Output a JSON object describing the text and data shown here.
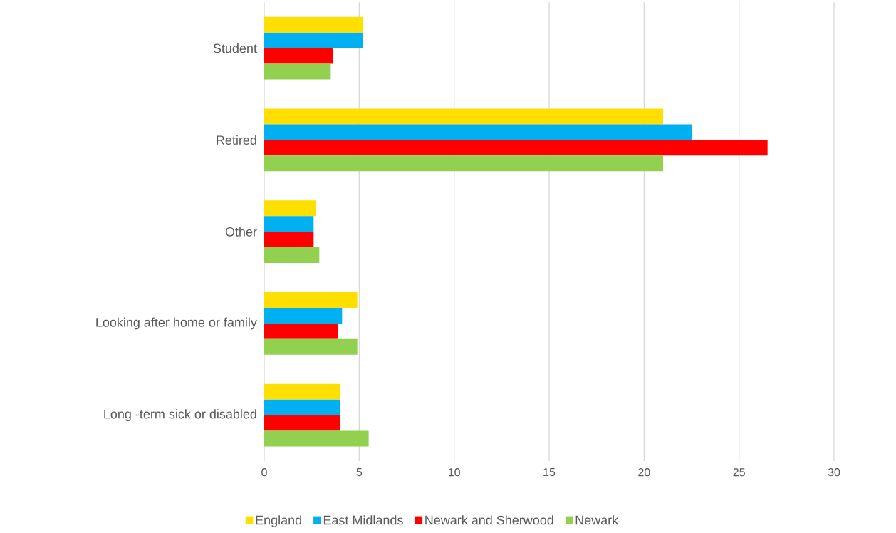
{
  "chart_data": {
    "type": "bar",
    "orientation": "horizontal",
    "categories": [
      "Student",
      "Retired",
      "Other",
      "Looking after home or family",
      "Long -term sick or disabled"
    ],
    "series": [
      {
        "name": "England",
        "color": "#ffdf00",
        "values": [
          5.2,
          21.0,
          2.7,
          4.9,
          4.0
        ]
      },
      {
        "name": "East Midlands",
        "color": "#00b0f0",
        "values": [
          5.2,
          22.5,
          2.6,
          4.1,
          4.0
        ]
      },
      {
        "name": "Newark and Sherwood",
        "color": "#ff0000",
        "values": [
          3.6,
          26.5,
          2.6,
          3.9,
          4.0
        ]
      },
      {
        "name": "Newark",
        "color": "#92d050",
        "values": [
          3.5,
          21.0,
          2.9,
          4.9,
          5.5
        ]
      }
    ],
    "xlim": [
      0,
      30
    ],
    "xticks": [
      0,
      5,
      10,
      15,
      20,
      25,
      30
    ],
    "grid": "x",
    "legend": "bottom"
  }
}
